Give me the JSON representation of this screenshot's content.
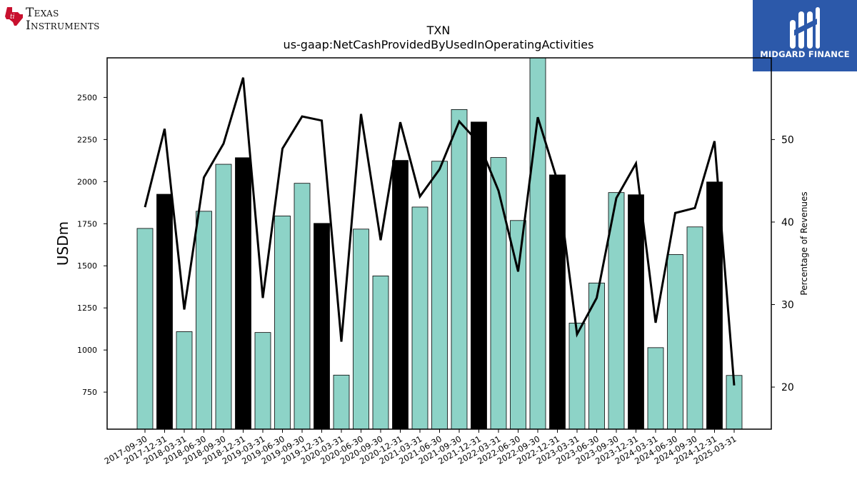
{
  "logos": {
    "left_brand": [
      "Texas",
      "Instruments"
    ],
    "right_brand": "MIDGARD FINANCE"
  },
  "colors": {
    "bar_default": "#8dd3c7",
    "bar_highlight": "#000000",
    "line": "#000000",
    "brand_blue": "#2c59aa",
    "ti_red": "#c8102e"
  },
  "chart_data": {
    "type": "bar",
    "title": "TXN",
    "subtitle": "us-gaap:NetCashProvidedByUsedInOperatingActivities",
    "ylabel": "USDm",
    "y2label": "Percentage of Revenues",
    "ylim": [
      530,
      2735
    ],
    "y2lim": [
      14.9,
      59.9
    ],
    "yticks": [
      750,
      1000,
      1250,
      1500,
      1750,
      2000,
      2250,
      2500
    ],
    "y2ticks": [
      20,
      30,
      40,
      50
    ],
    "grid": false,
    "categories": [
      "2017-09-30",
      "2017-12-31",
      "2018-03-31",
      "2018-06-30",
      "2018-09-30",
      "2018-12-31",
      "2019-03-31",
      "2019-06-30",
      "2019-09-30",
      "2019-12-31",
      "2020-03-31",
      "2020-06-30",
      "2020-09-30",
      "2020-12-31",
      "2021-03-31",
      "2021-06-30",
      "2021-09-30",
      "2021-12-31",
      "2022-03-31",
      "2022-06-30",
      "2022-09-30",
      "2022-12-31",
      "2023-03-31",
      "2023-06-30",
      "2023-09-30",
      "2023-12-31",
      "2024-03-31",
      "2024-06-30",
      "2024-09-30",
      "2024-12-31",
      "2025-03-31"
    ],
    "series": [
      {
        "kind": "bar",
        "axis": "left",
        "values": [
          1722,
          1925,
          1109,
          1824,
          2103,
          2142,
          1104,
          1796,
          1990,
          1752,
          851,
          1718,
          1440,
          2126,
          1849,
          2121,
          2428,
          2354,
          2143,
          1769,
          2750,
          2040,
          1160,
          1398,
          1935,
          1922,
          1014,
          1567,
          1731,
          1998,
          849
        ],
        "highlight": [
          false,
          true,
          false,
          false,
          false,
          true,
          false,
          false,
          false,
          true,
          false,
          false,
          false,
          true,
          false,
          false,
          false,
          true,
          false,
          false,
          false,
          true,
          false,
          false,
          false,
          true,
          false,
          false,
          false,
          true,
          false
        ]
      },
      {
        "kind": "line",
        "axis": "right",
        "values": [
          41.8,
          51.3,
          29.4,
          45.4,
          49.5,
          57.5,
          30.8,
          48.9,
          52.8,
          52.3,
          25.5,
          53.1,
          37.8,
          52.1,
          43.1,
          46.4,
          52.2,
          49.6,
          43.8,
          34.0,
          52.7,
          45.0,
          26.4,
          30.8,
          42.9,
          47.1,
          27.8,
          41.1,
          41.7,
          49.8,
          20.2
        ]
      }
    ]
  }
}
